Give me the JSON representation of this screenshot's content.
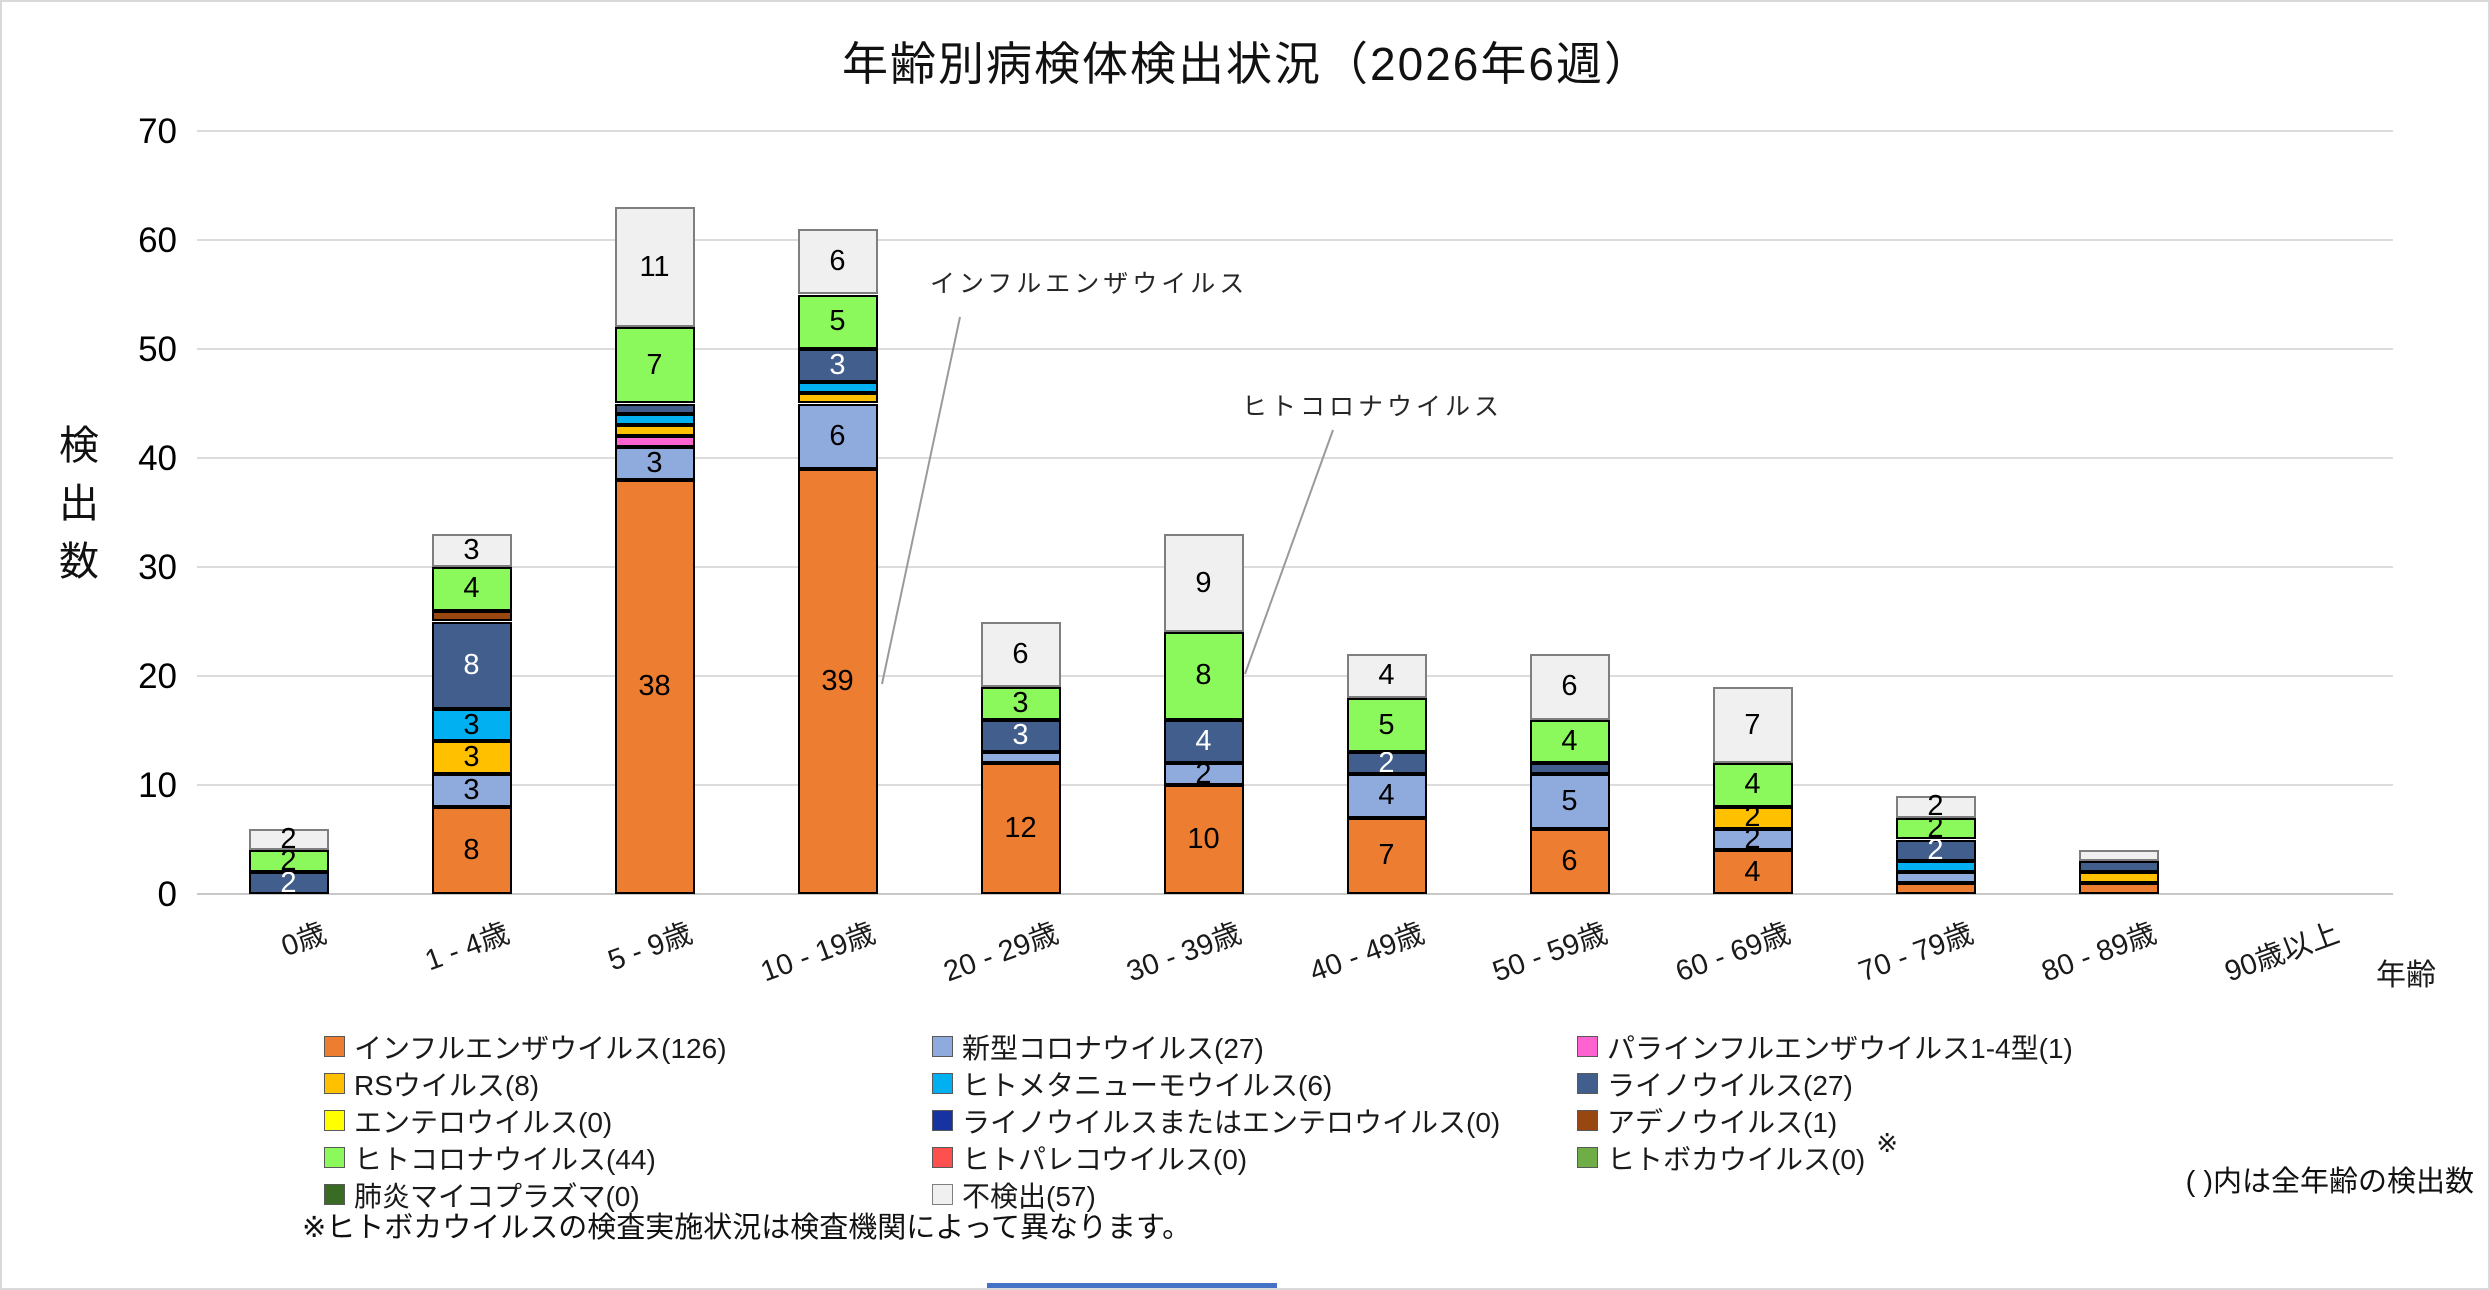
{
  "title": "年齢別病検体検出状況（2026年6週）",
  "axes": {
    "y_label": "検出数",
    "x_label": "年齢",
    "y_ticks": [
      70,
      60,
      50,
      40,
      30,
      20,
      10,
      0
    ]
  },
  "annotations": [
    {
      "text": "インフルエンザウイルス",
      "points_to": {
        "category": "10 - 19歳",
        "series": "インフルエンザウイルス"
      }
    },
    {
      "text": "ヒトコロナウイルス",
      "points_to": {
        "category": "30 - 39歳",
        "series": "ヒトコロナウイルス"
      }
    }
  ],
  "notes": {
    "paren": "( )内は全年齢の検出数",
    "bocavirus": "※ヒトボカウイルスの検査実施状況は検査機関によって異なります。"
  },
  "chart_data": {
    "type": "bar",
    "stacked": true,
    "title": "年齢別病検体検出状況（2026年6週）",
    "xlabel": "年齢",
    "ylabel": "検出数",
    "ylim": [
      0,
      70
    ],
    "ytick_step": 10,
    "grid": true,
    "legend_position": "bottom",
    "value_label_rule": "segments with value >= 2 show their value",
    "categories": [
      "0歳",
      "1 - 4歳",
      "5 - 9歳",
      "10 - 19歳",
      "20 - 29歳",
      "30 - 39歳",
      "40 - 49歳",
      "50 - 59歳",
      "60 - 69歳",
      "70 - 79歳",
      "80 - 89歳",
      "90歳以上"
    ],
    "series": [
      {
        "name": "インフルエンザウイルス",
        "total": 126,
        "legend": "インフルエンザウイルス(126)",
        "color": "#ED7D31",
        "values": [
          0,
          8,
          38,
          39,
          12,
          10,
          7,
          6,
          4,
          1,
          1,
          0
        ]
      },
      {
        "name": "新型コロナウイルス",
        "total": 27,
        "legend": "新型コロナウイルス(27)",
        "color": "#8FAADC",
        "values": [
          0,
          3,
          3,
          6,
          1,
          2,
          4,
          5,
          2,
          1,
          0,
          0
        ]
      },
      {
        "name": "パラインフルエンザウイルス1-4型",
        "total": 1,
        "legend": "パラインフルエンザウイルス1-4型(1)",
        "color": "#FF63CF",
        "values": [
          0,
          0,
          1,
          0,
          0,
          0,
          0,
          0,
          0,
          0,
          0,
          0
        ]
      },
      {
        "name": "RSウイルス",
        "total": 8,
        "legend": "RSウイルス(8)",
        "color": "#FFC000",
        "values": [
          0,
          3,
          1,
          1,
          0,
          0,
          0,
          0,
          2,
          0,
          1,
          0
        ]
      },
      {
        "name": "ヒトメタニューモウイルス",
        "total": 6,
        "legend": "ヒトメタニューモウイルス(6)",
        "color": "#00B0F0",
        "values": [
          0,
          3,
          1,
          1,
          0,
          0,
          0,
          0,
          0,
          1,
          0,
          0
        ]
      },
      {
        "name": "ライノウイルス",
        "total": 27,
        "legend": "ライノウイルス(27)",
        "color": "#415E8C",
        "label_color": "#ffffff",
        "values": [
          2,
          8,
          1,
          3,
          3,
          4,
          2,
          1,
          0,
          2,
          1,
          0
        ]
      },
      {
        "name": "エンテロウイルス",
        "total": 0,
        "legend": "エンテロウイルス(0)",
        "color": "#FFFF00",
        "values": [
          0,
          0,
          0,
          0,
          0,
          0,
          0,
          0,
          0,
          0,
          0,
          0
        ]
      },
      {
        "name": "ライノウイルスまたはエンテロウイルス",
        "total": 0,
        "legend": "ライノウイルスまたはエンテロウイルス(0)",
        "color": "#1733A1",
        "values": [
          0,
          0,
          0,
          0,
          0,
          0,
          0,
          0,
          0,
          0,
          0,
          0
        ]
      },
      {
        "name": "アデノウイルス",
        "total": 1,
        "legend": "アデノウイルス(1)",
        "color": "#97470F",
        "values": [
          0,
          1,
          0,
          0,
          0,
          0,
          0,
          0,
          0,
          0,
          0,
          0
        ]
      },
      {
        "name": "ヒトコロナウイルス",
        "total": 44,
        "legend": "ヒトコロナウイルス(44)",
        "color": "#8BF95C",
        "values": [
          2,
          4,
          7,
          5,
          3,
          8,
          5,
          4,
          4,
          2,
          0,
          0
        ]
      },
      {
        "name": "ヒトパレコウイルス",
        "total": 0,
        "legend": "ヒトパレコウイルス(0)",
        "color": "#FF5050",
        "values": [
          0,
          0,
          0,
          0,
          0,
          0,
          0,
          0,
          0,
          0,
          0,
          0
        ]
      },
      {
        "name": "ヒトボカウイルス",
        "total": 0,
        "legend": "ヒトボカウイルス(0)",
        "color": "#6FAD46",
        "note_mark": "※",
        "values": [
          0,
          0,
          0,
          0,
          0,
          0,
          0,
          0,
          0,
          0,
          0,
          0
        ]
      },
      {
        "name": "肺炎マイコプラズマ",
        "total": 0,
        "legend": "肺炎マイコプラズマ(0)",
        "color": "#3A6B24",
        "values": [
          0,
          0,
          0,
          0,
          0,
          0,
          0,
          0,
          0,
          0,
          0,
          0
        ]
      },
      {
        "name": "不検出",
        "total": 57,
        "legend": "不検出(57)",
        "color": "#F0F0F0",
        "border_color": "#7F7F7F",
        "values": [
          2,
          3,
          11,
          6,
          6,
          9,
          4,
          6,
          7,
          2,
          1,
          0
        ]
      }
    ]
  }
}
